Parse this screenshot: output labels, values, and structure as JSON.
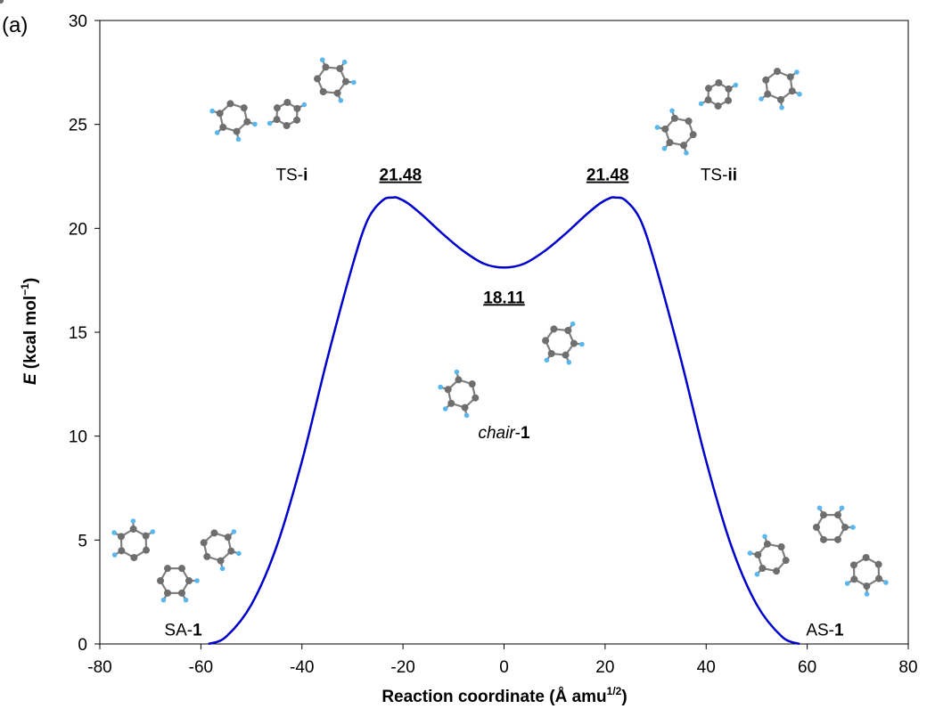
{
  "panel_label": "(a)",
  "chart_data": {
    "type": "line",
    "xlabel": "Reaction coordinate (Å amu",
    "xlabel_sup": "1/2",
    "xlabel_end": ")",
    "ylabel_italic": "E",
    "ylabel": " (kcal mol",
    "ylabel_sup": "−1",
    "ylabel_end": ")",
    "xlim": [
      -80,
      80
    ],
    "ylim": [
      0,
      30
    ],
    "xticks": [
      "-80",
      "-60",
      "-40",
      "-20",
      "0",
      "20",
      "40",
      "60",
      "80"
    ],
    "yticks": [
      "0",
      "5",
      "10",
      "15",
      "20",
      "25",
      "30"
    ],
    "xtick_values": [
      -80,
      -60,
      -40,
      -20,
      0,
      20,
      40,
      60,
      80
    ],
    "ytick_values": [
      0,
      5,
      10,
      15,
      20,
      25,
      30
    ],
    "grid": false,
    "series": [
      {
        "color": "#0000cc",
        "x": [
          -58.5,
          -55,
          -50,
          -45,
          -40,
          -35,
          -30,
          -27,
          -24,
          -22,
          -21,
          -19,
          -16,
          -12,
          -8,
          -4,
          0,
          4,
          8,
          12,
          16,
          19,
          21,
          22,
          24,
          27,
          30,
          35,
          40,
          45,
          50,
          55,
          58.5
        ],
        "y": [
          0,
          0.35,
          1.9,
          4.7,
          8.8,
          13.7,
          18.2,
          20.4,
          21.35,
          21.48,
          21.46,
          21.2,
          20.6,
          19.7,
          18.9,
          18.3,
          18.11,
          18.3,
          18.9,
          19.7,
          20.6,
          21.2,
          21.46,
          21.48,
          21.35,
          20.4,
          18.2,
          13.7,
          8.8,
          4.7,
          1.9,
          0.35,
          0
        ]
      }
    ],
    "annotations": [
      {
        "text": "21.48",
        "x": -20.5,
        "y": 22.3
      },
      {
        "text": "21.48",
        "x": 20.5,
        "y": 22.3
      },
      {
        "text": "18.11",
        "x": 0,
        "y": 16.4
      }
    ],
    "structures": [
      {
        "prefix": "TS-",
        "bold": "i",
        "x": -42,
        "y": 22.3
      },
      {
        "prefix": "TS-",
        "bold": "ii",
        "x": 42.5,
        "y": 22.3
      },
      {
        "italic": "chair",
        "prefix": "-",
        "bold": "1",
        "x": 0,
        "y": 9.9
      },
      {
        "prefix": "SA-",
        "bold": "1",
        "x": -63.5,
        "y": 0.4
      },
      {
        "prefix": "AS-",
        "bold": "1",
        "x": 63.5,
        "y": 0.4
      }
    ],
    "colors": {
      "curve": "#0000cc",
      "carbon": "#6e6e6e",
      "hydrogen": "#5ab7ee"
    }
  }
}
